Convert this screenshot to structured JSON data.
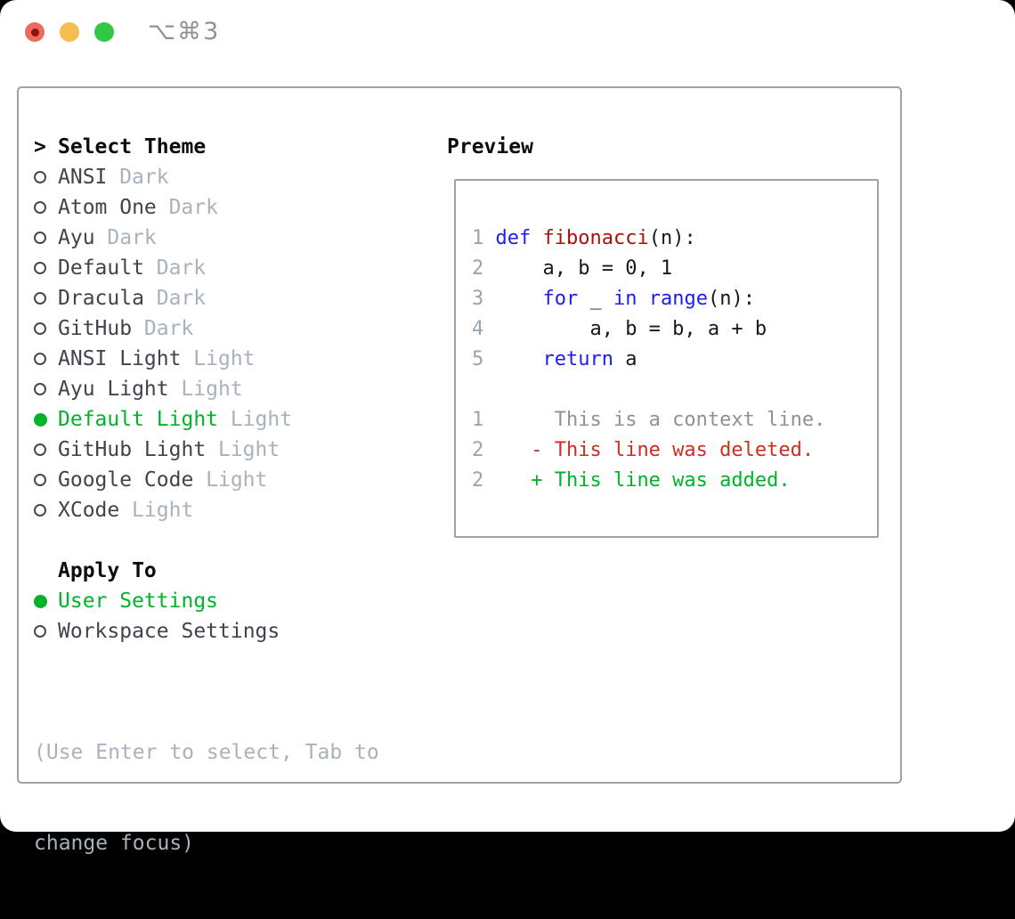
{
  "window": {
    "title": "⌥⌘3",
    "controls": [
      "close-button",
      "minimize-button",
      "maximize-button"
    ]
  },
  "colors": {
    "accent_green": "#00b32a",
    "keyword_blue": "#1d1df2",
    "function_red": "#ab1010",
    "deleted_red": "#cd2e1d",
    "added_green": "#00b32a",
    "context_gray": "#8b9299",
    "muted_gray": "#a9b2bc",
    "line_number_gray": "#9aa4b1",
    "text_dark": "#3f444c",
    "border_gray": "#9aa3ad",
    "traffic_red": "#ee6a5e",
    "traffic_yellow": "#f5bd4f",
    "traffic_green": "#33c748"
  },
  "theme_picker": {
    "header_marker": ">",
    "header": "Select Theme",
    "items": [
      {
        "label": "ANSI",
        "variant": "Dark",
        "selected": false
      },
      {
        "label": "Atom One",
        "variant": "Dark",
        "selected": false
      },
      {
        "label": "Ayu",
        "variant": "Dark",
        "selected": false
      },
      {
        "label": "Default",
        "variant": "Dark",
        "selected": false
      },
      {
        "label": "Dracula",
        "variant": "Dark",
        "selected": false
      },
      {
        "label": "GitHub",
        "variant": "Dark",
        "selected": false
      },
      {
        "label": "ANSI Light",
        "variant": "Light",
        "selected": false
      },
      {
        "label": "Ayu Light",
        "variant": "Light",
        "selected": false
      },
      {
        "label": "Default Light",
        "variant": "Light",
        "selected": true
      },
      {
        "label": "GitHub Light",
        "variant": "Light",
        "selected": false
      },
      {
        "label": "Google Code",
        "variant": "Light",
        "selected": false
      },
      {
        "label": "XCode",
        "variant": "Light",
        "selected": false
      }
    ]
  },
  "apply_to": {
    "header": "Apply To",
    "options": [
      {
        "label": "User Settings",
        "selected": true
      },
      {
        "label": "Workspace Settings",
        "selected": false
      }
    ]
  },
  "help": {
    "lines": [
      "(Use Enter to select, Tab to",
      "change focus)"
    ]
  },
  "preview": {
    "header": "Preview",
    "code_lines": [
      {
        "num": "1",
        "segments": [
          {
            "text": "def",
            "color": "keyword"
          },
          {
            "text": " ",
            "color": "plain"
          },
          {
            "text": "fibonacci",
            "color": "function"
          },
          {
            "text": "(n):",
            "color": "plain"
          }
        ]
      },
      {
        "num": "2",
        "segments": [
          {
            "text": "    a, b = 0, 1",
            "color": "plain"
          }
        ]
      },
      {
        "num": "3",
        "segments": [
          {
            "text": "    ",
            "color": "plain"
          },
          {
            "text": "for",
            "color": "keyword"
          },
          {
            "text": " _ ",
            "color": "plain"
          },
          {
            "text": "in",
            "color": "keyword"
          },
          {
            "text": " ",
            "color": "plain"
          },
          {
            "text": "range",
            "color": "keyword"
          },
          {
            "text": "(n):",
            "color": "plain"
          }
        ]
      },
      {
        "num": "4",
        "segments": [
          {
            "text": "        a, b = b, a + b",
            "color": "plain"
          }
        ]
      },
      {
        "num": "5",
        "segments": [
          {
            "text": "    ",
            "color": "plain"
          },
          {
            "text": "return",
            "color": "keyword"
          },
          {
            "text": " a",
            "color": "plain"
          }
        ]
      },
      {
        "num": "",
        "segments": []
      },
      {
        "num": "1",
        "segments": [
          {
            "text": "     This is a context line.",
            "color": "context"
          }
        ]
      },
      {
        "num": "2",
        "segments": [
          {
            "text": "   - This line was deleted.",
            "color": "deleted"
          }
        ]
      },
      {
        "num": "2",
        "segments": [
          {
            "text": "   + This line was added.",
            "color": "added"
          }
        ]
      }
    ]
  }
}
